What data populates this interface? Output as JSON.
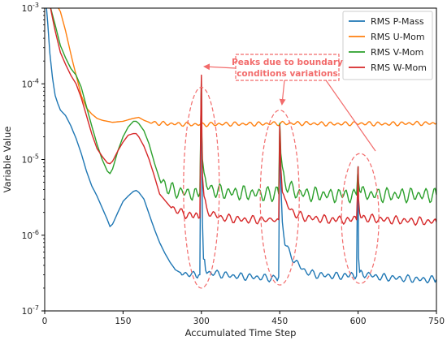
{
  "chart_data": {
    "type": "line",
    "xlabel": "Accumulated Time Step",
    "ylabel": "Variable Value",
    "xlim": [
      0,
      750
    ],
    "ylim": [
      1e-07,
      0.001
    ],
    "yscale": "log",
    "grid": false,
    "legend_position": "top-right",
    "x_ticks": [
      0,
      150,
      300,
      450,
      600,
      750
    ],
    "x_tick_labels": [
      "0",
      "150",
      "300",
      "450",
      "600",
      "750"
    ],
    "y_ticks": [
      1e-07,
      1e-06,
      1e-05,
      0.0001,
      0.001
    ],
    "y_tick_labels": [
      {
        "base": "10",
        "exp": "-7"
      },
      {
        "base": "10",
        "exp": "-6"
      },
      {
        "base": "10",
        "exp": "-5"
      },
      {
        "base": "10",
        "exp": "-4"
      },
      {
        "base": "10",
        "exp": "-3"
      }
    ],
    "series": [
      {
        "name": "RMS P-Mass",
        "color": "#1f77b4",
        "x": [
          0,
          3,
          6,
          10,
          15,
          20,
          25,
          30,
          40,
          50,
          60,
          70,
          80,
          90,
          100,
          110,
          120,
          125,
          130,
          140,
          150,
          160,
          170,
          175,
          180,
          190,
          200,
          210,
          220,
          230,
          240,
          250,
          260,
          270,
          280,
          290,
          297,
          299,
          300,
          301,
          302,
          304,
          308,
          315,
          330,
          360,
          400,
          440,
          448,
          450,
          451,
          452,
          455,
          460,
          470,
          480,
          490,
          500,
          520,
          550,
          580,
          597,
          599,
          600,
          601,
          603,
          610,
          640,
          680,
          720,
          750
        ],
        "y": [
          0.0012,
          0.0011,
          0.0006,
          0.00025,
          0.00012,
          7e-05,
          5.5e-05,
          4.5e-05,
          3.8e-05,
          2.8e-05,
          1.9e-05,
          1.2e-05,
          7e-06,
          4.5e-06,
          3.3e-06,
          2.3e-06,
          1.6e-06,
          1.3e-06,
          1.4e-06,
          2e-06,
          2.8e-06,
          3.3e-06,
          3.8e-06,
          3.9e-06,
          3.7e-06,
          3e-06,
          1.9e-06,
          1.2e-06,
          8e-07,
          5.8e-07,
          4.4e-07,
          3.5e-07,
          3.2e-07,
          3.1e-07,
          3e-07,
          3e-07,
          3e-07,
          4e-05,
          0.00011,
          1e-05,
          1.5e-06,
          5e-07,
          3.7e-07,
          3.2e-07,
          3.1e-07,
          2.9e-07,
          2.8e-07,
          2.7e-07,
          2.8e-07,
          2.5e-05,
          1.5e-05,
          5e-06,
          1.5e-06,
          8e-07,
          5.5e-07,
          4.5e-07,
          3.8e-07,
          3.3e-07,
          3e-07,
          2.9e-07,
          2.9e-07,
          2.9e-07,
          6e-06,
          8e-06,
          5e-07,
          3.4e-07,
          3.1e-07,
          2.8e-07,
          2.7e-07,
          2.6e-07,
          2.6e-07
        ]
      },
      {
        "name": "RMS U-Mom",
        "color": "#ff7f0e",
        "x": [
          0,
          10,
          20,
          30,
          40,
          50,
          60,
          70,
          80,
          90,
          100,
          110,
          120,
          130,
          150,
          170,
          180,
          190,
          200,
          220,
          250,
          300,
          350,
          400,
          450,
          500,
          550,
          600,
          650,
          700,
          750
        ],
        "y": [
          0.0012,
          0.0012,
          0.0012,
          0.0009,
          0.0005,
          0.00025,
          0.00013,
          7e-05,
          4.8e-05,
          4e-05,
          3.5e-05,
          3.3e-05,
          3.2e-05,
          3.1e-05,
          3.2e-05,
          3.5e-05,
          3.6e-05,
          3.3e-05,
          3.1e-05,
          3e-05,
          2.95e-05,
          2.9e-05,
          2.95e-05,
          2.95e-05,
          3e-05,
          3e-05,
          2.95e-05,
          3e-05,
          2.95e-05,
          3e-05,
          3e-05
        ]
      },
      {
        "name": "RMS V-Mom",
        "color": "#2ca02c",
        "x": [
          0,
          5,
          10,
          20,
          30,
          40,
          50,
          60,
          70,
          80,
          90,
          100,
          110,
          120,
          125,
          130,
          140,
          150,
          160,
          170,
          175,
          180,
          190,
          200,
          210,
          220,
          240,
          260,
          280,
          297,
          299,
          300,
          301,
          302,
          305,
          310,
          320,
          340,
          380,
          420,
          448,
          450,
          451,
          452,
          455,
          460,
          470,
          480,
          500,
          550,
          597,
          599,
          600,
          601,
          603,
          610,
          650,
          700,
          750
        ],
        "y": [
          0.0012,
          0.0012,
          0.0011,
          0.0006,
          0.00032,
          0.00022,
          0.00016,
          0.00013,
          9e-05,
          5e-05,
          2.8e-05,
          1.6e-05,
          1e-05,
          7e-06,
          6.5e-06,
          7.5e-06,
          1.3e-05,
          2e-05,
          2.7e-05,
          3.2e-05,
          3.2e-05,
          3e-05,
          2.4e-05,
          1.6e-05,
          9e-06,
          5.5e-06,
          4e-06,
          3.7e-06,
          3.6e-06,
          3.6e-06,
          4e-05,
          0.00012,
          2e-05,
          1e-05,
          6e-06,
          4.5e-06,
          4e-06,
          3.7e-06,
          3.6e-06,
          3.5e-06,
          3.5e-06,
          3e-05,
          2.2e-05,
          1.2e-05,
          7e-06,
          5e-06,
          4.2e-06,
          3.7e-06,
          3.5e-06,
          3.4e-06,
          3.4e-06,
          6e-06,
          8e-06,
          5e-06,
          4e-06,
          3.5e-06,
          3.4e-06,
          3.4e-06,
          3.4e-06
        ]
      },
      {
        "name": "RMS W-Mom",
        "color": "#d62728",
        "x": [
          0,
          5,
          10,
          20,
          30,
          40,
          50,
          60,
          70,
          80,
          90,
          100,
          110,
          120,
          125,
          130,
          140,
          150,
          160,
          170,
          175,
          180,
          190,
          200,
          210,
          220,
          240,
          260,
          280,
          297,
          299,
          300,
          301,
          302,
          305,
          310,
          320,
          340,
          380,
          420,
          448,
          450,
          451,
          452,
          455,
          460,
          470,
          480,
          500,
          550,
          597,
          599,
          600,
          601,
          603,
          610,
          650,
          700,
          750
        ],
        "y": [
          0.0012,
          0.0012,
          0.0011,
          0.0005,
          0.00026,
          0.00018,
          0.00013,
          0.0001,
          6.5e-05,
          3.8e-05,
          2.2e-05,
          1.4e-05,
          1.1e-05,
          9e-06,
          8.8e-06,
          9.5e-06,
          1.3e-05,
          1.7e-05,
          2.1e-05,
          2.2e-05,
          2.2e-05,
          2e-05,
          1.5e-05,
          1e-05,
          6e-06,
          3.5e-06,
          2.4e-06,
          2e-06,
          1.8e-06,
          1.7e-06,
          5e-05,
          0.00013,
          2e-05,
          6e-06,
          3e-06,
          2.2e-06,
          1.9e-06,
          1.7e-06,
          1.6e-06,
          1.6e-06,
          1.6e-06,
          2.8e-05,
          1.8e-05,
          8e-06,
          4e-06,
          2.8e-06,
          2.2e-06,
          1.9e-06,
          1.7e-06,
          1.6e-06,
          1.6e-06,
          4e-06,
          8e-06,
          3e-06,
          2e-06,
          1.7e-06,
          1.6e-06,
          1.55e-06,
          1.5e-06
        ]
      }
    ],
    "annotation": {
      "lines": [
        "Peaks due to boundary",
        "conditions variations"
      ],
      "color": "#f26b6b"
    }
  }
}
